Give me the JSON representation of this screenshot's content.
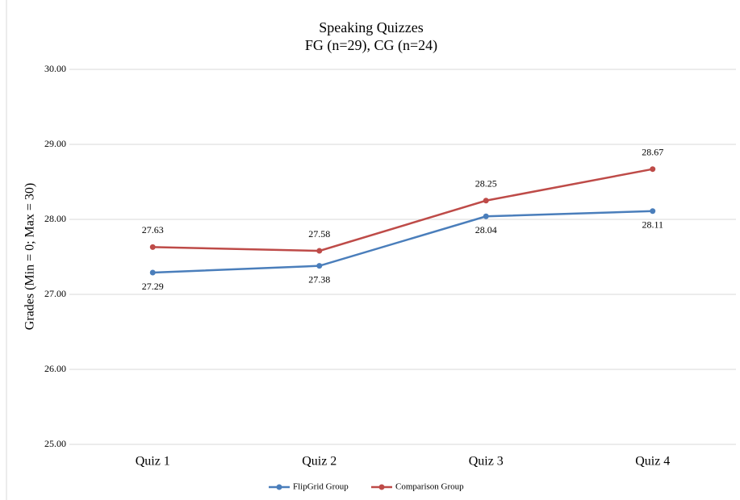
{
  "chart_data": {
    "type": "line",
    "title": "Speaking Quizzes",
    "subtitle": "FG (n=29), CG (n=24)",
    "y_label": "Grades (Min = 0; Max = 30)",
    "categories": [
      "Quiz 1",
      "Quiz 2",
      "Quiz 3",
      "Quiz 4"
    ],
    "series": [
      {
        "name": "FlipGrid Group",
        "color": "#4a7ebb",
        "values": [
          27.29,
          27.38,
          28.04,
          28.11
        ]
      },
      {
        "name": "Comparison Group",
        "color": "#be4b48",
        "values": [
          27.63,
          27.58,
          28.25,
          28.67
        ]
      }
    ],
    "ylim": [
      25,
      30
    ],
    "yticks": [
      {
        "value": 25,
        "label": "25.00"
      },
      {
        "value": 26,
        "label": "26.00"
      },
      {
        "value": 27,
        "label": "27.00"
      },
      {
        "value": 28,
        "label": "28.00"
      },
      {
        "value": 29,
        "label": "29.00"
      },
      {
        "value": 30,
        "label": "30.00"
      }
    ],
    "grid": true,
    "legend": "bottom"
  }
}
